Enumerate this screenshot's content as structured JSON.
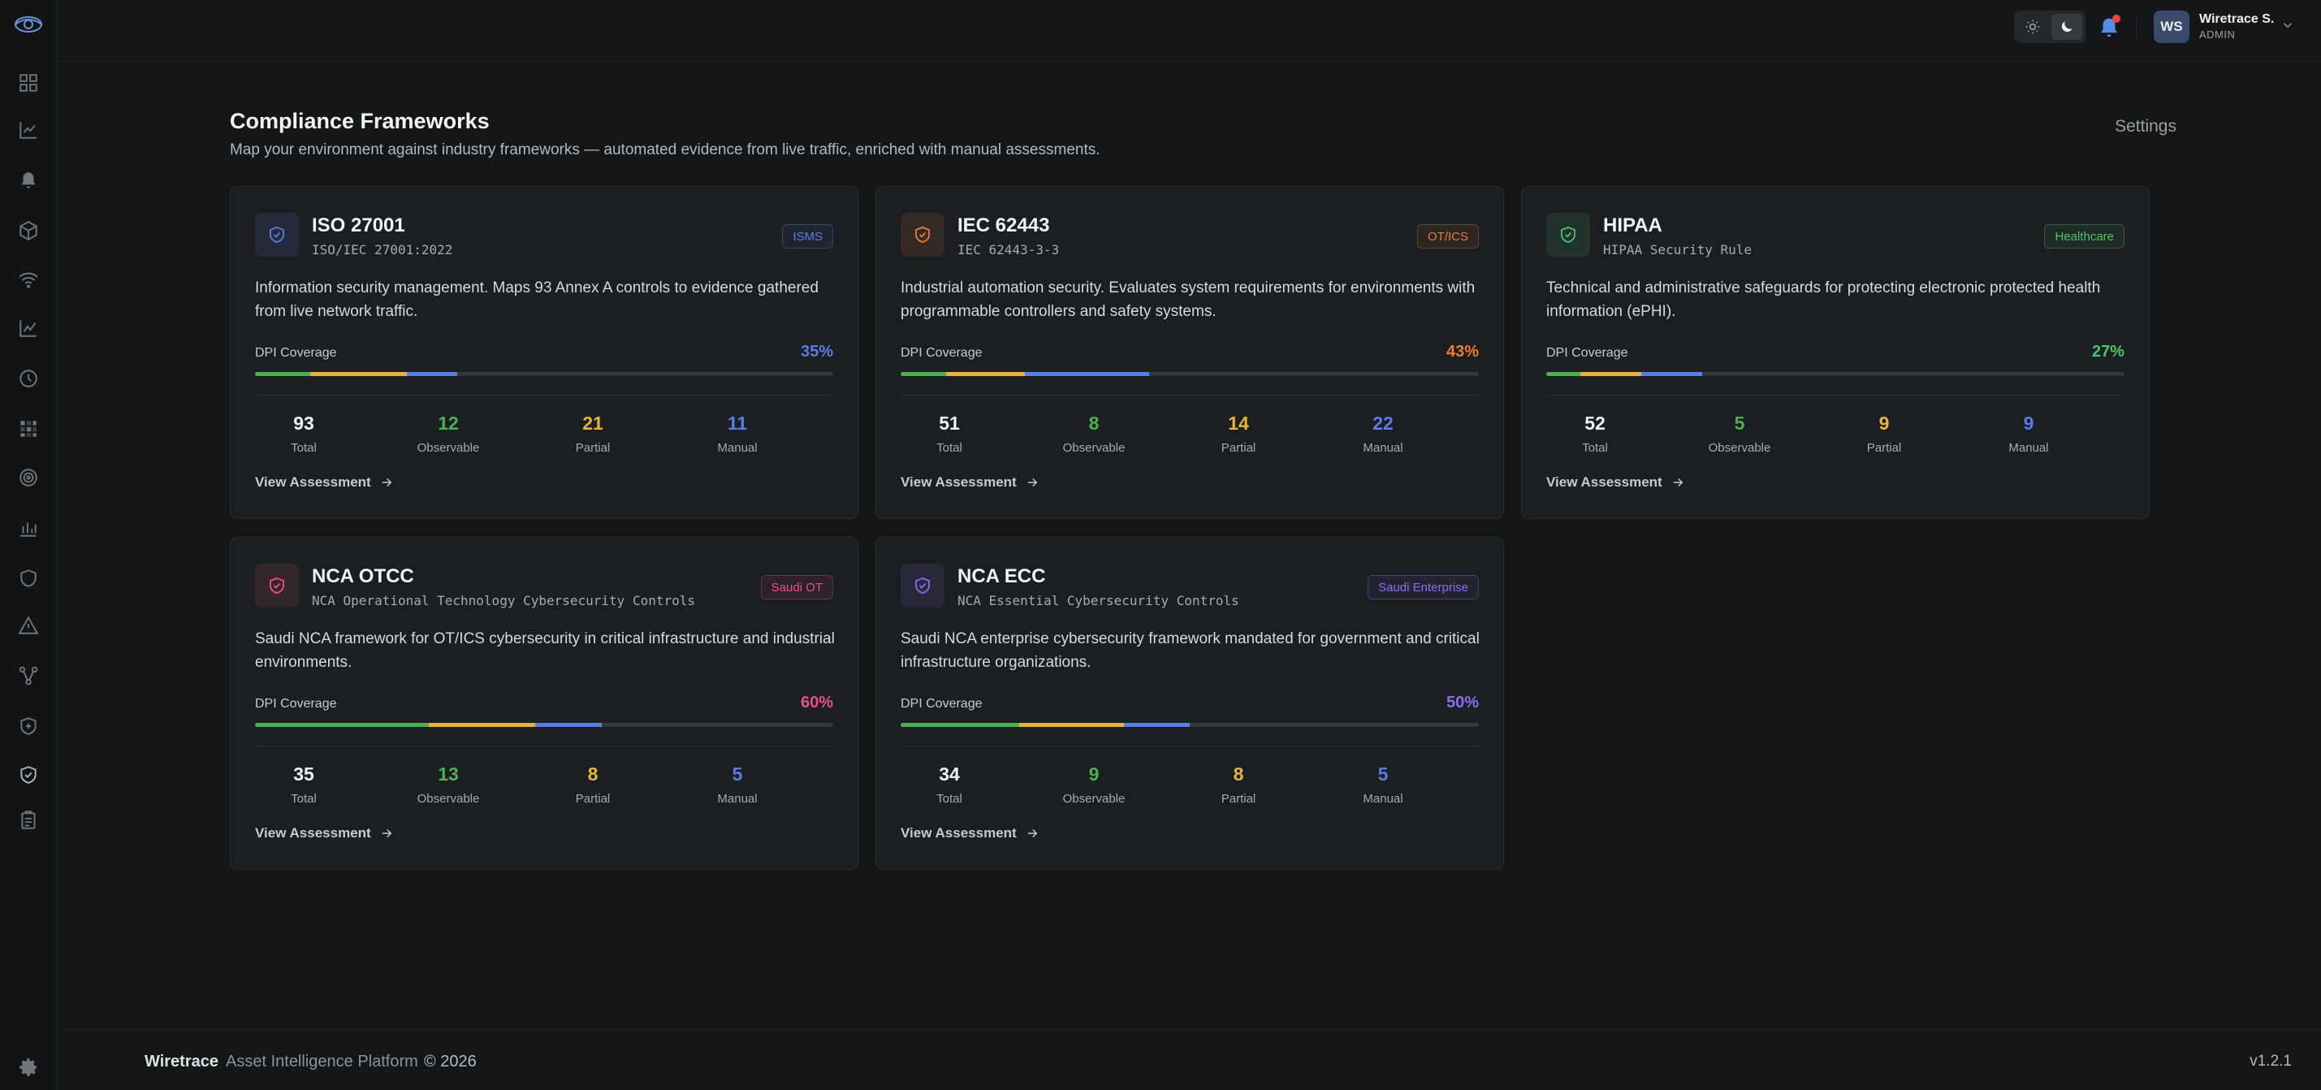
{
  "user": {
    "initials": "WS",
    "name": "Wiretrace S.",
    "role": "ADMIN"
  },
  "header": {
    "title": "Compliance Frameworks",
    "subtitle": "Map your environment against industry frameworks — automated evidence from live traffic, enriched with manual assessments.",
    "settings_label": "Settings"
  },
  "colors": {
    "observable": "#4caf50",
    "partial": "#e9b23a",
    "manual": "#5b7be6"
  },
  "frameworks": [
    {
      "name": "ISO 27001",
      "standard": "ISO/IEC 27001:2022",
      "badge": "ISMS",
      "accent": "#5b7be6",
      "description": "Information security management. Maps 93 Annex A controls to evidence gathered from live network traffic.",
      "coverage_label": "DPI Coverage",
      "coverage": "35%",
      "total": "93",
      "observable": "12",
      "partial": "21",
      "manual": "11",
      "total_label": "Total",
      "observable_label": "Observable",
      "partial_label": "Partial",
      "manual_label": "Manual",
      "view_label": "View Assessment"
    },
    {
      "name": "IEC 62443",
      "standard": "IEC 62443-3-3",
      "badge": "OT/ICS",
      "accent": "#f07a32",
      "description": "Industrial automation security. Evaluates system requirements for environments with programmable controllers and safety systems.",
      "coverage_label": "DPI Coverage",
      "coverage": "43%",
      "total": "51",
      "observable": "8",
      "partial": "14",
      "manual": "22",
      "total_label": "Total",
      "observable_label": "Observable",
      "partial_label": "Partial",
      "manual_label": "Manual",
      "view_label": "View Assessment"
    },
    {
      "name": "HIPAA",
      "standard": "HIPAA Security Rule",
      "badge": "Healthcare",
      "accent": "#4cc26a",
      "description": "Technical and administrative safeguards for protecting electronic protected health information (ePHI).",
      "coverage_label": "DPI Coverage",
      "coverage": "27%",
      "total": "52",
      "observable": "5",
      "partial": "9",
      "manual": "9",
      "total_label": "Total",
      "observable_label": "Observable",
      "partial_label": "Partial",
      "manual_label": "Manual",
      "view_label": "View Assessment"
    },
    {
      "name": "NCA OTCC",
      "standard": "NCA Operational Technology Cybersecurity Controls",
      "badge": "Saudi OT",
      "accent": "#ec4f86",
      "description": "Saudi NCA framework for OT/ICS cybersecurity in critical infrastructure and industrial environments.",
      "coverage_label": "DPI Coverage",
      "coverage": "60%",
      "total": "35",
      "observable": "13",
      "partial": "8",
      "manual": "5",
      "total_label": "Total",
      "observable_label": "Observable",
      "partial_label": "Partial",
      "manual_label": "Manual",
      "view_label": "View Assessment"
    },
    {
      "name": "NCA ECC",
      "standard": "NCA Essential Cybersecurity Controls",
      "badge": "Saudi Enterprise",
      "accent": "#8b6cf0",
      "description": "Saudi NCA enterprise cybersecurity framework mandated for government and critical infrastructure organizations.",
      "coverage_label": "DPI Coverage",
      "coverage": "50%",
      "total": "34",
      "observable": "9",
      "partial": "8",
      "manual": "5",
      "total_label": "Total",
      "observable_label": "Observable",
      "partial_label": "Partial",
      "manual_label": "Manual",
      "view_label": "View Assessment"
    }
  ],
  "footer": {
    "brand": "Wiretrace",
    "platform": "Asset Intelligence Platform",
    "copyright": "© 2026",
    "version": "v1.2.1"
  }
}
